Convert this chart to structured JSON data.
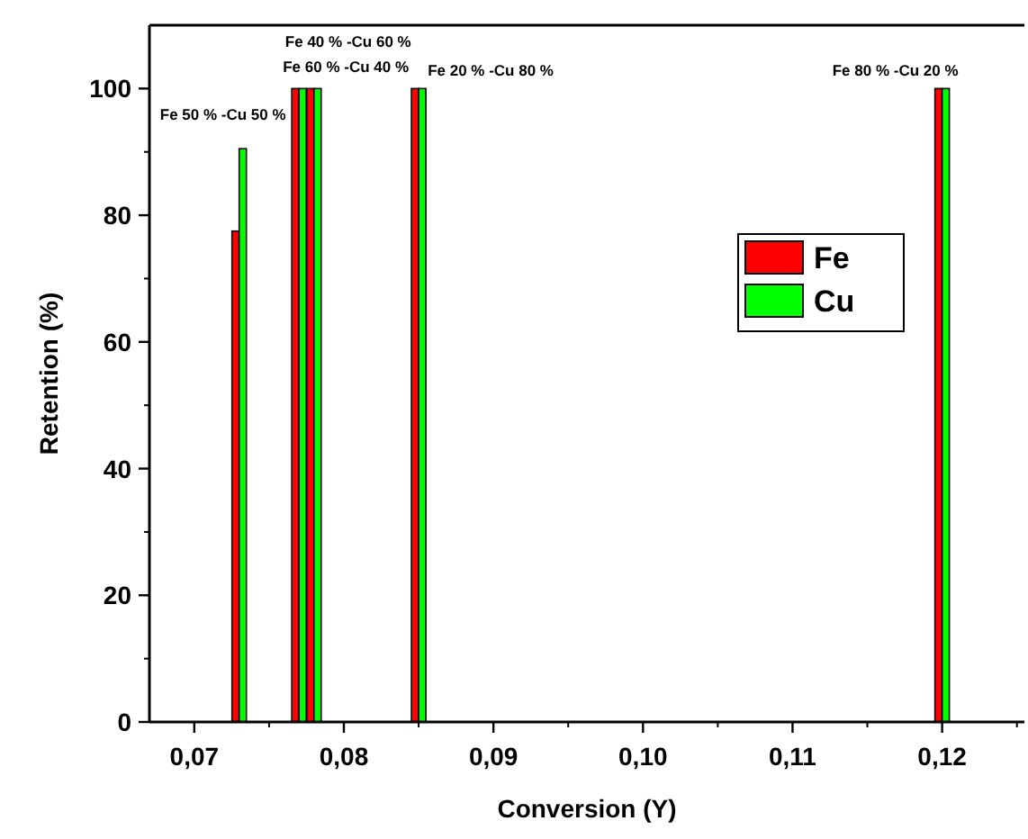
{
  "chart_data": {
    "type": "bar",
    "xlabel": "Conversion (Y)",
    "ylabel": "Retention (%)",
    "x": [
      0.073,
      0.077,
      0.078,
      0.085,
      0.12
    ],
    "series": [
      {
        "name": "Fe",
        "color": "#ff0000",
        "values": [
          77.5,
          100,
          100,
          100,
          100
        ]
      },
      {
        "name": "Cu",
        "color": "#00ff00",
        "values": [
          90.5,
          100,
          100,
          100,
          100
        ]
      }
    ],
    "xlim": [
      0.067,
      0.1255
    ],
    "xticks": [
      {
        "value": 0.07,
        "label": "0,07"
      },
      {
        "value": 0.08,
        "label": "0,08"
      },
      {
        "value": 0.09,
        "label": "0,09"
      },
      {
        "value": 0.1,
        "label": "0,10"
      },
      {
        "value": 0.11,
        "label": "0,11"
      },
      {
        "value": 0.12,
        "label": "0,12"
      }
    ],
    "ylim": [
      0,
      110
    ],
    "yticks": [
      0,
      20,
      40,
      60,
      80,
      100
    ],
    "annotations": [
      {
        "text": "Fe 50 % -Cu 50 %",
        "x": 0.073,
        "y": 90.5
      },
      {
        "text": "Fe 40 % -Cu 60 %",
        "x": 0.078,
        "y": 100
      },
      {
        "text": "Fe 60 % -Cu 40 %",
        "x": 0.077,
        "y": 100
      },
      {
        "text": "Fe 20 % -Cu 80 %",
        "x": 0.085,
        "y": 100
      },
      {
        "text": "Fe 80 % -Cu 20 %",
        "x": 0.12,
        "y": 100
      }
    ],
    "legend": "right",
    "grid": false
  }
}
